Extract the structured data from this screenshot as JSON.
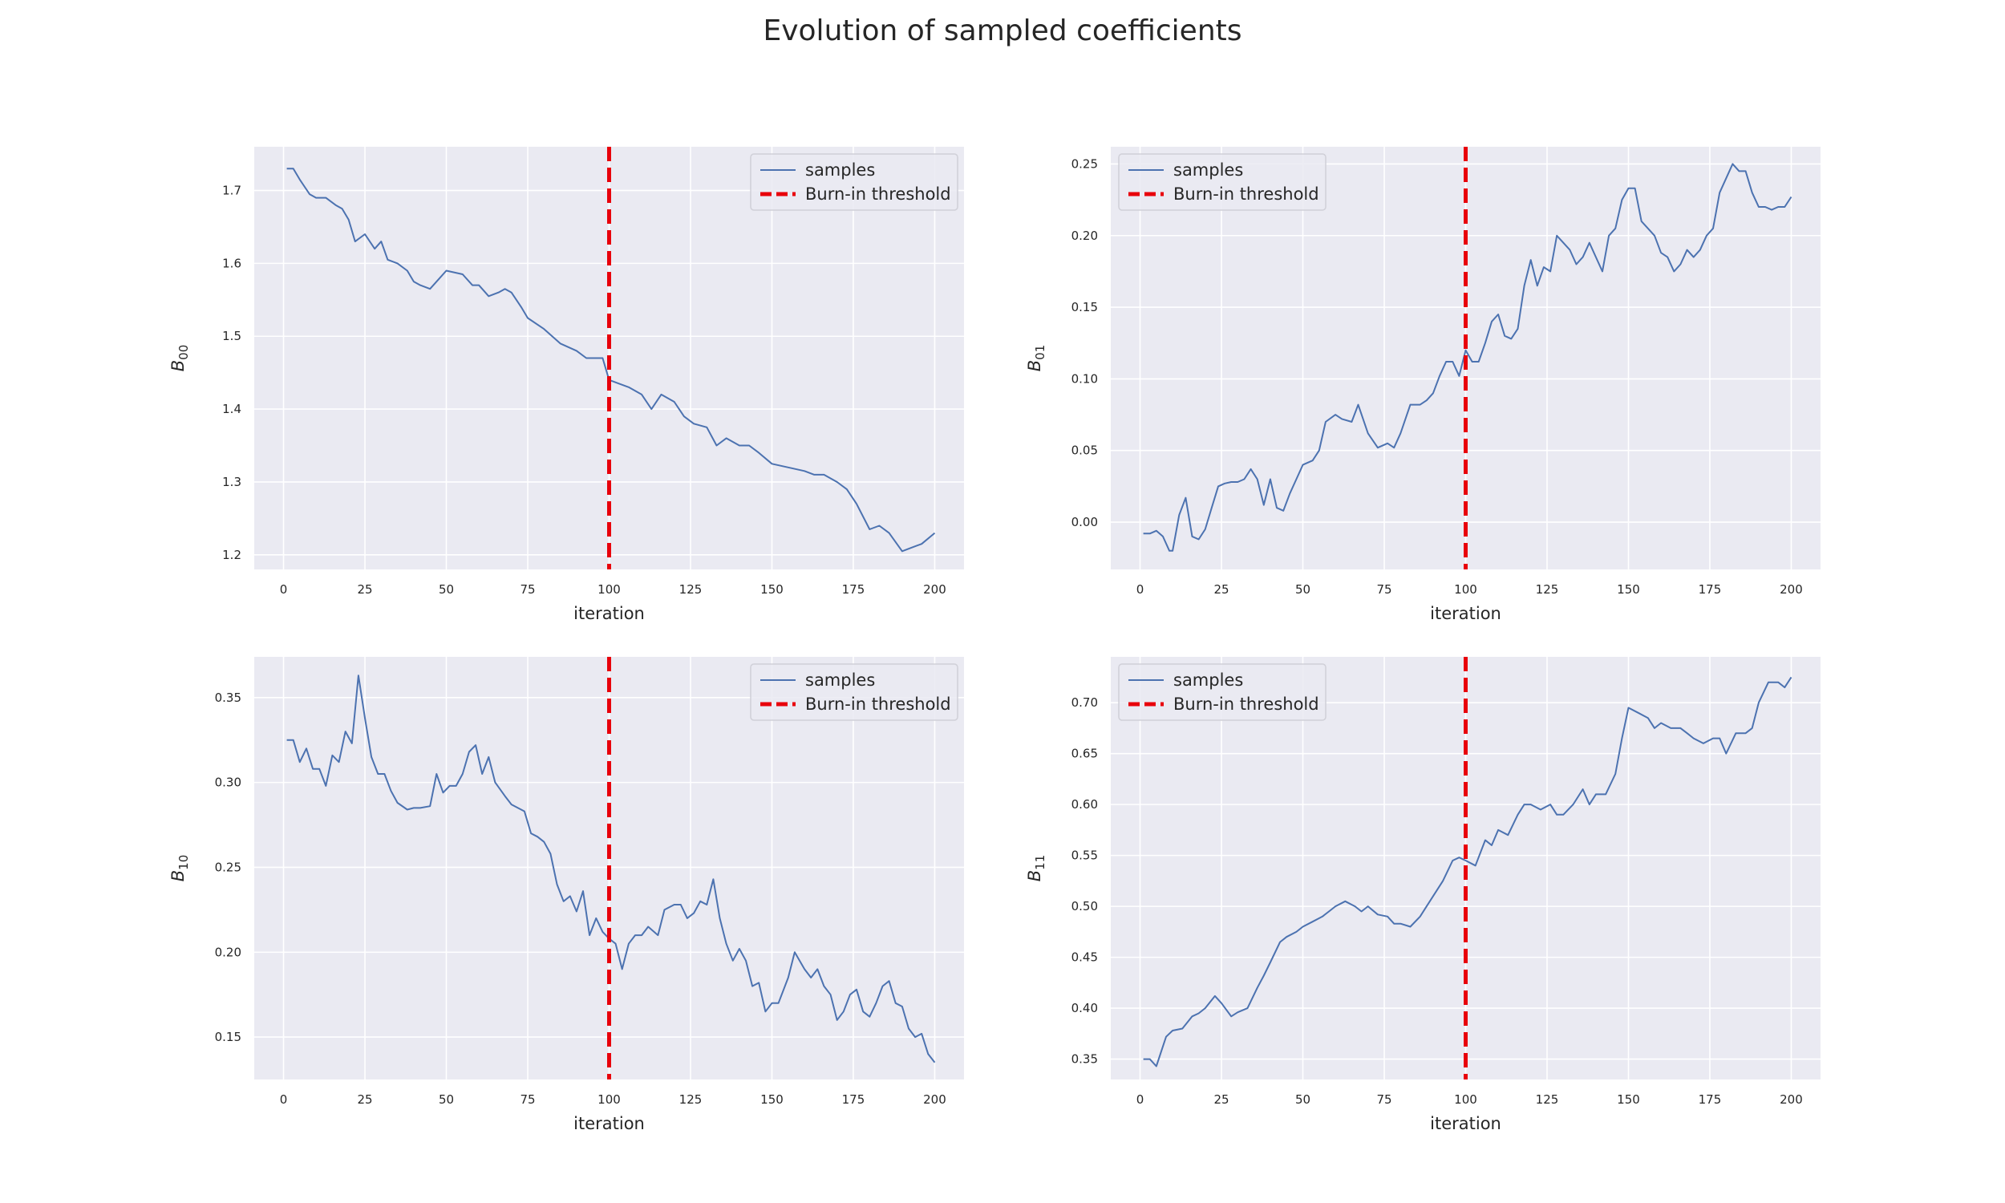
{
  "figure_title": "Evolution of sampled coefficients",
  "colors": {
    "series": "#4c72b0",
    "threshold": "#e8000b",
    "plot_bg": "#eaeaf2",
    "grid": "#ffffff"
  },
  "chart_data": [
    {
      "type": "line",
      "xlabel": "iteration",
      "ylabel": "B",
      "ylabel_sub": "00",
      "xlim": [
        -9,
        209
      ],
      "ylim": [
        1.18,
        1.76
      ],
      "xticks": [
        0,
        25,
        50,
        75,
        100,
        125,
        150,
        175,
        200
      ],
      "yticks": [
        1.2,
        1.3,
        1.4,
        1.5,
        1.6,
        1.7
      ],
      "threshold_x": 100,
      "legend": {
        "position": "upper right",
        "items": [
          "samples",
          "Burn-in threshold"
        ]
      },
      "series": [
        {
          "name": "samples",
          "x": [
            1,
            3,
            5,
            8,
            10,
            13,
            16,
            18,
            20,
            22,
            25,
            28,
            30,
            32,
            35,
            38,
            40,
            42,
            45,
            48,
            50,
            55,
            58,
            60,
            63,
            66,
            68,
            70,
            73,
            75,
            80,
            85,
            90,
            93,
            95,
            98,
            100,
            103,
            106,
            110,
            113,
            116,
            120,
            123,
            126,
            130,
            133,
            136,
            140,
            143,
            146,
            150,
            155,
            160,
            163,
            166,
            170,
            173,
            176,
            180,
            183,
            186,
            190,
            193,
            196,
            200
          ],
          "values": [
            1.73,
            1.73,
            1.715,
            1.695,
            1.69,
            1.69,
            1.68,
            1.675,
            1.66,
            1.63,
            1.64,
            1.62,
            1.63,
            1.605,
            1.6,
            1.59,
            1.575,
            1.57,
            1.565,
            1.58,
            1.59,
            1.585,
            1.57,
            1.57,
            1.555,
            1.56,
            1.565,
            1.56,
            1.54,
            1.525,
            1.51,
            1.49,
            1.48,
            1.47,
            1.47,
            1.47,
            1.44,
            1.435,
            1.43,
            1.42,
            1.4,
            1.42,
            1.41,
            1.39,
            1.38,
            1.375,
            1.35,
            1.36,
            1.35,
            1.35,
            1.34,
            1.325,
            1.32,
            1.315,
            1.31,
            1.31,
            1.3,
            1.29,
            1.27,
            1.235,
            1.24,
            1.23,
            1.205,
            1.21,
            1.215,
            1.23
          ]
        }
      ]
    },
    {
      "type": "line",
      "xlabel": "iteration",
      "ylabel": "B",
      "ylabel_sub": "01",
      "xlim": [
        -9,
        209
      ],
      "ylim": [
        -0.033,
        0.262
      ],
      "xticks": [
        0,
        25,
        50,
        75,
        100,
        125,
        150,
        175,
        200
      ],
      "yticks": [
        0.0,
        0.05,
        0.1,
        0.15,
        0.2,
        0.25
      ],
      "threshold_x": 100,
      "legend": {
        "position": "upper left",
        "items": [
          "samples",
          "Burn-in threshold"
        ]
      },
      "series": [
        {
          "name": "samples",
          "x": [
            1,
            3,
            5,
            7,
            9,
            10,
            12,
            14,
            16,
            18,
            20,
            22,
            24,
            26,
            28,
            30,
            32,
            34,
            36,
            38,
            40,
            42,
            44,
            46,
            48,
            50,
            53,
            55,
            57,
            60,
            62,
            65,
            67,
            70,
            73,
            76,
            78,
            80,
            83,
            86,
            88,
            90,
            92,
            94,
            96,
            98,
            100,
            102,
            104,
            106,
            108,
            110,
            112,
            114,
            116,
            118,
            120,
            122,
            124,
            126,
            128,
            130,
            132,
            134,
            136,
            138,
            140,
            142,
            144,
            146,
            148,
            150,
            152,
            154,
            156,
            158,
            160,
            162,
            164,
            166,
            168,
            170,
            172,
            174,
            176,
            178,
            180,
            182,
            184,
            186,
            188,
            190,
            192,
            194,
            196,
            198,
            200
          ],
          "values": [
            -0.008,
            -0.008,
            -0.006,
            -0.01,
            -0.02,
            -0.02,
            0.005,
            0.017,
            -0.01,
            -0.012,
            -0.005,
            0.01,
            0.025,
            0.027,
            0.028,
            0.028,
            0.03,
            0.037,
            0.03,
            0.012,
            0.03,
            0.01,
            0.008,
            0.02,
            0.03,
            0.04,
            0.043,
            0.05,
            0.07,
            0.075,
            0.072,
            0.07,
            0.082,
            0.062,
            0.052,
            0.055,
            0.052,
            0.062,
            0.082,
            0.082,
            0.085,
            0.09,
            0.102,
            0.112,
            0.112,
            0.102,
            0.12,
            0.112,
            0.112,
            0.125,
            0.14,
            0.145,
            0.13,
            0.128,
            0.135,
            0.165,
            0.183,
            0.165,
            0.178,
            0.175,
            0.2,
            0.195,
            0.19,
            0.18,
            0.185,
            0.195,
            0.185,
            0.175,
            0.2,
            0.205,
            0.225,
            0.233,
            0.233,
            0.21,
            0.205,
            0.2,
            0.188,
            0.185,
            0.175,
            0.18,
            0.19,
            0.185,
            0.19,
            0.2,
            0.205,
            0.23,
            0.24,
            0.25,
            0.245,
            0.245,
            0.23,
            0.22,
            0.22,
            0.218,
            0.22,
            0.22,
            0.227
          ]
        }
      ]
    },
    {
      "type": "line",
      "xlabel": "iteration",
      "ylabel": "B",
      "ylabel_sub": "10",
      "xlim": [
        -9,
        209
      ],
      "ylim": [
        0.125,
        0.374
      ],
      "xticks": [
        0,
        25,
        50,
        75,
        100,
        125,
        150,
        175,
        200
      ],
      "yticks": [
        0.15,
        0.2,
        0.25,
        0.3,
        0.35
      ],
      "threshold_x": 100,
      "legend": {
        "position": "upper right",
        "items": [
          "samples",
          "Burn-in threshold"
        ]
      },
      "series": [
        {
          "name": "samples",
          "x": [
            1,
            3,
            5,
            7,
            9,
            11,
            13,
            15,
            17,
            19,
            21,
            23,
            25,
            27,
            29,
            31,
            33,
            35,
            38,
            40,
            42,
            45,
            47,
            49,
            51,
            53,
            55,
            57,
            59,
            61,
            63,
            65,
            68,
            70,
            72,
            74,
            76,
            78,
            80,
            82,
            84,
            86,
            88,
            90,
            92,
            94,
            96,
            98,
            100,
            102,
            104,
            106,
            108,
            110,
            112,
            115,
            117,
            120,
            122,
            124,
            126,
            128,
            130,
            132,
            134,
            136,
            138,
            140,
            142,
            144,
            146,
            148,
            150,
            152,
            155,
            157,
            160,
            162,
            164,
            166,
            168,
            170,
            172,
            174,
            176,
            178,
            180,
            182,
            184,
            186,
            188,
            190,
            192,
            194,
            196,
            198,
            200
          ],
          "values": [
            0.325,
            0.325,
            0.312,
            0.32,
            0.308,
            0.308,
            0.298,
            0.316,
            0.312,
            0.33,
            0.323,
            0.363,
            0.338,
            0.315,
            0.305,
            0.305,
            0.295,
            0.288,
            0.284,
            0.285,
            0.285,
            0.286,
            0.305,
            0.294,
            0.298,
            0.298,
            0.305,
            0.318,
            0.322,
            0.305,
            0.315,
            0.3,
            0.292,
            0.287,
            0.285,
            0.283,
            0.27,
            0.268,
            0.265,
            0.258,
            0.24,
            0.23,
            0.233,
            0.224,
            0.236,
            0.21,
            0.22,
            0.212,
            0.208,
            0.205,
            0.19,
            0.205,
            0.21,
            0.21,
            0.215,
            0.21,
            0.225,
            0.228,
            0.228,
            0.22,
            0.223,
            0.23,
            0.228,
            0.243,
            0.22,
            0.205,
            0.195,
            0.202,
            0.195,
            0.18,
            0.182,
            0.165,
            0.17,
            0.17,
            0.185,
            0.2,
            0.19,
            0.185,
            0.19,
            0.18,
            0.175,
            0.16,
            0.165,
            0.175,
            0.178,
            0.165,
            0.162,
            0.17,
            0.18,
            0.183,
            0.17,
            0.168,
            0.155,
            0.15,
            0.152,
            0.14,
            0.135
          ]
        }
      ]
    },
    {
      "type": "line",
      "xlabel": "iteration",
      "ylabel": "B",
      "ylabel_sub": "11",
      "xlim": [
        -9,
        209
      ],
      "ylim": [
        0.33,
        0.745
      ],
      "xticks": [
        0,
        25,
        50,
        75,
        100,
        125,
        150,
        175,
        200
      ],
      "yticks": [
        0.35,
        0.4,
        0.45,
        0.5,
        0.55,
        0.6,
        0.65,
        0.7
      ],
      "threshold_x": 100,
      "legend": {
        "position": "upper left",
        "items": [
          "samples",
          "Burn-in threshold"
        ]
      },
      "series": [
        {
          "name": "samples",
          "x": [
            1,
            3,
            5,
            8,
            10,
            13,
            16,
            18,
            20,
            23,
            25,
            28,
            30,
            33,
            36,
            38,
            40,
            43,
            45,
            48,
            50,
            53,
            56,
            58,
            60,
            63,
            66,
            68,
            70,
            73,
            76,
            78,
            80,
            83,
            86,
            88,
            90,
            93,
            96,
            98,
            100,
            103,
            106,
            108,
            110,
            113,
            116,
            118,
            120,
            123,
            126,
            128,
            130,
            133,
            136,
            138,
            140,
            143,
            146,
            148,
            150,
            153,
            156,
            158,
            160,
            163,
            166,
            168,
            170,
            173,
            176,
            178,
            180,
            183,
            186,
            188,
            190,
            193,
            196,
            198,
            200
          ],
          "values": [
            0.35,
            0.35,
            0.343,
            0.372,
            0.378,
            0.38,
            0.392,
            0.395,
            0.4,
            0.412,
            0.405,
            0.392,
            0.396,
            0.4,
            0.42,
            0.432,
            0.445,
            0.465,
            0.47,
            0.475,
            0.48,
            0.485,
            0.49,
            0.495,
            0.5,
            0.505,
            0.5,
            0.495,
            0.5,
            0.492,
            0.49,
            0.483,
            0.483,
            0.48,
            0.49,
            0.5,
            0.51,
            0.525,
            0.545,
            0.548,
            0.545,
            0.54,
            0.565,
            0.56,
            0.575,
            0.57,
            0.59,
            0.6,
            0.6,
            0.595,
            0.6,
            0.59,
            0.59,
            0.6,
            0.615,
            0.6,
            0.61,
            0.61,
            0.63,
            0.665,
            0.695,
            0.69,
            0.685,
            0.675,
            0.68,
            0.675,
            0.675,
            0.67,
            0.665,
            0.66,
            0.665,
            0.665,
            0.65,
            0.67,
            0.67,
            0.675,
            0.7,
            0.72,
            0.72,
            0.715,
            0.725
          ]
        }
      ]
    }
  ]
}
